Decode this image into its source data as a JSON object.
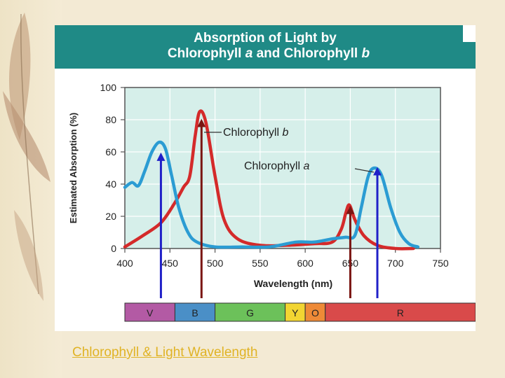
{
  "caption": "Chlorophyll & Light Wavelength",
  "chart_data": {
    "type": "line",
    "title_line1": "Absorption of Light by",
    "title_line2": "Chlorophyll a and Chlorophyll b",
    "title_italic_letters": [
      "a",
      "b"
    ],
    "xlabel": "Wavelength (nm)",
    "ylabel": "Estimated Absorption (%)",
    "xlim": [
      400,
      750
    ],
    "ylim": [
      0,
      100
    ],
    "xticks": [
      400,
      450,
      500,
      550,
      600,
      650,
      700,
      750
    ],
    "yticks": [
      0,
      20,
      40,
      60,
      80,
      100
    ],
    "grid": true,
    "series": [
      {
        "name": "Chlorophyll a",
        "color": "#2b9cd3",
        "x": [
          400,
          408,
          415,
          422,
          430,
          438,
          445,
          452,
          460,
          470,
          480,
          500,
          530,
          560,
          590,
          610,
          630,
          645,
          655,
          662,
          670,
          677,
          685,
          695,
          705,
          715,
          725
        ],
        "y": [
          38,
          41,
          39,
          48,
          60,
          66,
          62,
          45,
          25,
          10,
          4,
          1,
          1,
          1,
          4,
          4,
          6,
          7,
          8,
          25,
          45,
          50,
          45,
          25,
          10,
          3,
          1
        ]
      },
      {
        "name": "Chlorophyll b",
        "color": "#d42a2a",
        "x": [
          400,
          420,
          440,
          455,
          465,
          472,
          478,
          483,
          490,
          500,
          510,
          525,
          550,
          580,
          610,
          630,
          640,
          645,
          649,
          655,
          665,
          680,
          700,
          720
        ],
        "y": [
          1,
          8,
          16,
          28,
          38,
          45,
          70,
          85,
          78,
          45,
          18,
          6,
          2,
          2,
          3,
          4,
          12,
          22,
          27,
          18,
          8,
          2,
          0,
          0
        ]
      }
    ],
    "annotations": [
      {
        "label": "Chlorophyll b",
        "italic": "b",
        "points_to": "Chlorophyll b",
        "x": 485,
        "y": 74
      },
      {
        "label": "Chlorophyll a",
        "italic": "a",
        "points_to": "Chlorophyll a",
        "x": 675,
        "y": 50
      }
    ],
    "spectrum_bands": [
      {
        "label": "V",
        "from": 400,
        "to": 450,
        "color": "#b35aa4"
      },
      {
        "label": "B",
        "from": 450,
        "to": 490,
        "color": "#4a8fc7"
      },
      {
        "label": "G",
        "from": 490,
        "to": 560,
        "color": "#6cc15a"
      },
      {
        "label": "Y",
        "from": 560,
        "to": 580,
        "color": "#f2d532"
      },
      {
        "label": "O",
        "from": 580,
        "to": 600,
        "color": "#ee8a37"
      },
      {
        "label": "R",
        "from": 600,
        "to": 750,
        "color": "#d94a4a"
      }
    ],
    "arrows": [
      {
        "x": 440,
        "to_y": 57,
        "color": "#2020c8"
      },
      {
        "x": 485,
        "to_y": 78,
        "color": "#7a1512"
      },
      {
        "x": 650,
        "to_y": 24,
        "color": "#7a1512"
      },
      {
        "x": 680,
        "to_y": 48,
        "color": "#2020c8"
      }
    ]
  }
}
